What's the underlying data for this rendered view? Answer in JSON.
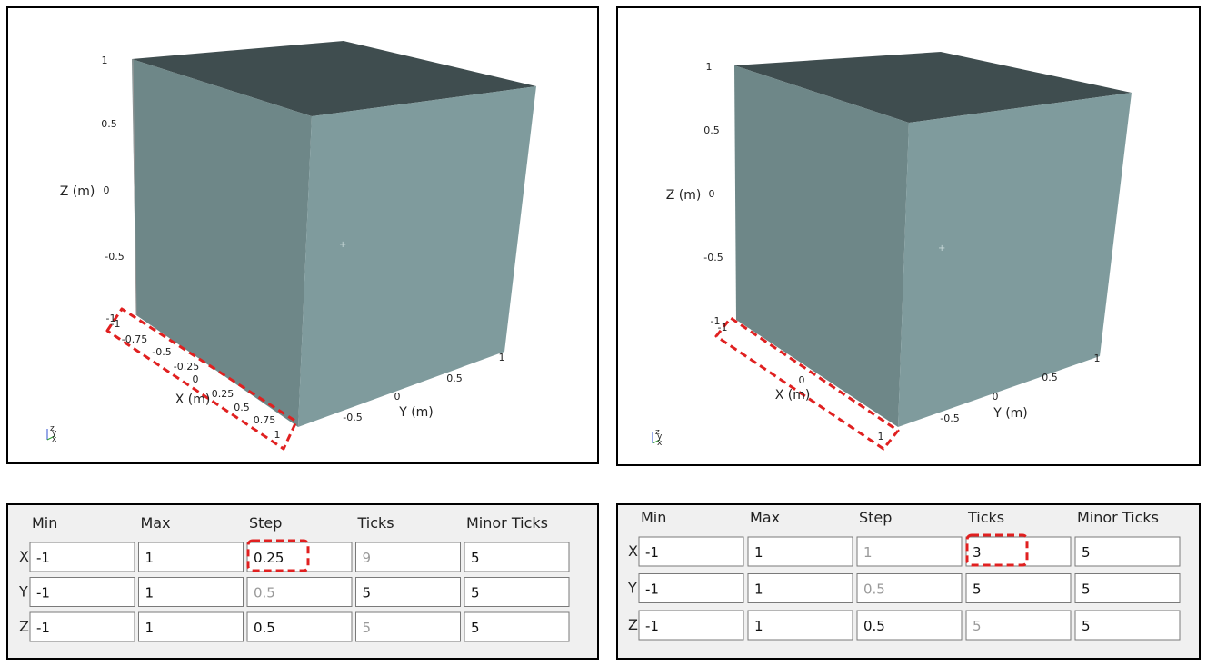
{
  "panels": [
    {
      "view": {
        "z_axis": {
          "title": "Z (m)",
          "ticks": [
            "1",
            "0.5",
            "0",
            "-0.5",
            "-1"
          ]
        },
        "x_axis": {
          "title": "X (m)",
          "ticks": [
            "-1",
            "-0.75",
            "-0.5",
            "-0.25",
            "0",
            "0.25",
            "0.5",
            "0.75",
            "1"
          ]
        },
        "y_axis": {
          "title": "Y (m)",
          "ticks": [
            "-0.5",
            "0",
            "0.5",
            "1"
          ]
        },
        "triad": [
          "z",
          "y",
          "x"
        ]
      },
      "table": {
        "columns": [
          "Min",
          "Max",
          "Step",
          "Ticks",
          "Minor Ticks"
        ],
        "rows": [
          {
            "label": "X",
            "cells": [
              {
                "text": "-1"
              },
              {
                "text": "1"
              },
              {
                "text": "0.25"
              },
              {
                "text": "9",
                "disabled": true
              },
              {
                "text": "5"
              }
            ]
          },
          {
            "label": "Y",
            "cells": [
              {
                "text": "-1"
              },
              {
                "text": "1"
              },
              {
                "text": "0.5",
                "disabled": true
              },
              {
                "text": "5"
              },
              {
                "text": "5"
              }
            ]
          },
          {
            "label": "Z",
            "cells": [
              {
                "text": "-1"
              },
              {
                "text": "1"
              },
              {
                "text": "0.5"
              },
              {
                "text": "5",
                "disabled": true
              },
              {
                "text": "5"
              }
            ]
          }
        ]
      }
    },
    {
      "view": {
        "z_axis": {
          "title": "Z (m)",
          "ticks": [
            "1",
            "0.5",
            "0",
            "-0.5",
            "-1"
          ]
        },
        "x_axis": {
          "title": "X (m)",
          "ticks": [
            "-1",
            "0",
            "1"
          ]
        },
        "y_axis": {
          "title": "Y (m)",
          "ticks": [
            "-0.5",
            "0",
            "0.5",
            "1"
          ]
        },
        "triad": [
          "z",
          "y",
          "x"
        ]
      },
      "table": {
        "columns": [
          "Min",
          "Max",
          "Step",
          "Ticks",
          "Minor Ticks"
        ],
        "rows": [
          {
            "label": "X",
            "cells": [
              {
                "text": "-1"
              },
              {
                "text": "1"
              },
              {
                "text": "1",
                "disabled": true
              },
              {
                "text": "3"
              },
              {
                "text": "5"
              }
            ]
          },
          {
            "label": "Y",
            "cells": [
              {
                "text": "-1"
              },
              {
                "text": "1"
              },
              {
                "text": "0.5",
                "disabled": true
              },
              {
                "text": "5"
              },
              {
                "text": "5"
              }
            ]
          },
          {
            "label": "Z",
            "cells": [
              {
                "text": "-1"
              },
              {
                "text": "1"
              },
              {
                "text": "0.5"
              },
              {
                "text": "5",
                "disabled": true
              },
              {
                "text": "5"
              }
            ]
          }
        ]
      }
    }
  ]
}
